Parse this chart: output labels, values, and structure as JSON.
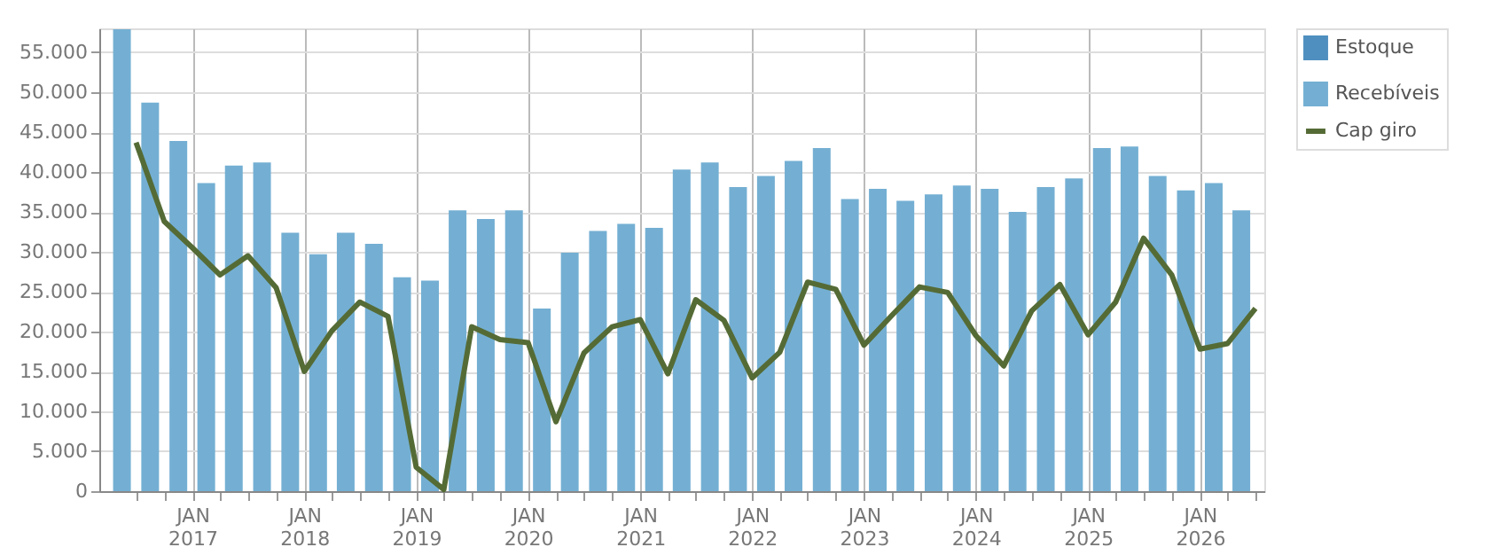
{
  "chart_data": {
    "type": "bar",
    "legend": "right",
    "grid": true,
    "line_style": "solid",
    "marker": "none",
    "x": [
      "2016-07",
      "2016-10",
      "2017-01",
      "2017-04",
      "2017-07",
      "2017-10",
      "2018-01",
      "2018-04",
      "2018-07",
      "2018-10",
      "2019-01",
      "2019-04",
      "2019-07",
      "2019-10",
      "2020-01",
      "2020-04",
      "2020-07",
      "2020-10",
      "2021-01",
      "2021-04",
      "2021-07",
      "2021-10",
      "2022-01",
      "2022-04",
      "2022-07",
      "2022-10",
      "2023-01",
      "2023-04",
      "2023-07",
      "2023-10",
      "2024-01",
      "2024-04",
      "2024-07",
      "2024-10",
      "2025-01",
      "2025-04",
      "2025-07",
      "2025-10",
      "2026-01",
      "2026-04",
      "2026-07"
    ],
    "xlim": [
      "2016-04",
      "2026-07"
    ],
    "xticks": [
      {
        "value": "2016-07",
        "label": null
      },
      {
        "value": "2016-10",
        "label": null
      },
      {
        "value": "2017-01",
        "label": "JAN\n2017"
      },
      {
        "value": "2017-04",
        "label": null
      },
      {
        "value": "2017-07",
        "label": null
      },
      {
        "value": "2017-10",
        "label": null
      },
      {
        "value": "2018-01",
        "label": "JAN\n2018"
      },
      {
        "value": "2018-04",
        "label": null
      },
      {
        "value": "2018-07",
        "label": null
      },
      {
        "value": "2018-10",
        "label": null
      },
      {
        "value": "2019-01",
        "label": "JAN\n2019"
      },
      {
        "value": "2019-04",
        "label": null
      },
      {
        "value": "2019-07",
        "label": null
      },
      {
        "value": "2019-10",
        "label": null
      },
      {
        "value": "2020-01",
        "label": "JAN\n2020"
      },
      {
        "value": "2020-04",
        "label": null
      },
      {
        "value": "2020-07",
        "label": null
      },
      {
        "value": "2020-10",
        "label": null
      },
      {
        "value": "2021-01",
        "label": "JAN\n2021"
      },
      {
        "value": "2021-04",
        "label": null
      },
      {
        "value": "2021-07",
        "label": null
      },
      {
        "value": "2021-10",
        "label": null
      },
      {
        "value": "2022-01",
        "label": "JAN\n2022"
      },
      {
        "value": "2022-04",
        "label": null
      },
      {
        "value": "2022-07",
        "label": null
      },
      {
        "value": "2022-10",
        "label": null
      },
      {
        "value": "2023-01",
        "label": "JAN\n2023"
      },
      {
        "value": "2023-04",
        "label": null
      },
      {
        "value": "2023-07",
        "label": null
      },
      {
        "value": "2023-10",
        "label": null
      },
      {
        "value": "2024-01",
        "label": "JAN\n2024"
      },
      {
        "value": "2024-04",
        "label": null
      },
      {
        "value": "2024-07",
        "label": null
      },
      {
        "value": "2024-10",
        "label": null
      },
      {
        "value": "2025-01",
        "label": "JAN\n2025"
      },
      {
        "value": "2025-04",
        "label": null
      },
      {
        "value": "2025-07",
        "label": null
      },
      {
        "value": "2025-10",
        "label": null
      },
      {
        "value": "2026-01",
        "label": "JAN\n2026"
      },
      {
        "value": "2026-04",
        "label": null
      },
      {
        "value": "2026-07",
        "label": null
      }
    ],
    "ylim": [
      0,
      58000
    ],
    "yticks": [
      {
        "value": 0,
        "label": "0"
      },
      {
        "value": 5000,
        "label": "5.000"
      },
      {
        "value": 10000,
        "label": "10.000"
      },
      {
        "value": 15000,
        "label": "15.000"
      },
      {
        "value": 20000,
        "label": "20.000"
      },
      {
        "value": 25000,
        "label": "25.000"
      },
      {
        "value": 30000,
        "label": "30.000"
      },
      {
        "value": 35000,
        "label": "35.000"
      },
      {
        "value": 40000,
        "label": "40.000"
      },
      {
        "value": 45000,
        "label": "45.000"
      },
      {
        "value": 50000,
        "label": "50.000"
      },
      {
        "value": 55000,
        "label": "55.000"
      }
    ],
    "series": [
      {
        "name": "Estoque",
        "color": "#4f8fc0",
        "values": [
          null,
          null,
          null,
          null,
          null,
          null,
          null,
          null,
          null,
          null,
          null,
          null,
          null,
          null,
          null,
          null,
          null,
          null,
          null,
          null,
          null,
          null,
          null,
          null,
          null,
          null,
          null,
          null,
          null,
          null,
          null,
          null,
          null,
          null,
          null,
          null,
          null,
          null,
          null,
          null,
          null
        ]
      },
      {
        "name": "Recebíveis",
        "color": "#74afd3",
        "x": [
          "2016-05-16",
          "2016-08-16",
          "2016-11-16",
          "2017-02-15",
          "2017-05-16",
          "2017-08-16",
          "2017-11-16",
          "2018-02-15",
          "2018-05-16",
          "2018-08-16",
          "2018-11-16",
          "2019-02-15",
          "2019-05-16",
          "2019-08-16",
          "2019-11-16",
          "2020-02-15",
          "2020-05-16",
          "2020-08-16",
          "2020-11-16",
          "2021-02-15",
          "2021-05-16",
          "2021-08-16",
          "2021-11-16",
          "2022-02-15",
          "2022-05-16",
          "2022-08-16",
          "2022-11-16",
          "2023-02-15",
          "2023-05-16",
          "2023-08-16",
          "2023-11-16",
          "2024-02-15",
          "2024-05-16",
          "2024-08-16",
          "2024-11-16",
          "2025-02-15",
          "2025-05-16",
          "2025-08-16",
          "2025-11-16",
          "2026-02-15",
          "2026-05-16"
        ],
        "values": [
          57900,
          48700,
          43900,
          38600,
          40800,
          41200,
          32400,
          29700,
          32400,
          31000,
          26800,
          26400,
          35200,
          34100,
          35200,
          22900,
          29900,
          32600,
          33500,
          33000,
          40300,
          41200,
          38100,
          39500,
          41400,
          43000,
          36600,
          37900,
          36400,
          37200,
          38300,
          37900,
          35000,
          38100,
          39200,
          43000,
          43200,
          39500,
          37700,
          38600,
          35200
        ]
      },
      {
        "name": "Cap giro",
        "type": "line",
        "color": "#556b36",
        "values": [
          43700,
          33800,
          30500,
          27100,
          29500,
          25500,
          15000,
          20100,
          23700,
          21900,
          3000,
          200,
          20600,
          19000,
          18600,
          8700,
          17300,
          20600,
          21500,
          14700,
          24000,
          21400,
          14200,
          17400,
          26200,
          25300,
          18300,
          22000,
          25600,
          24900,
          19500,
          15700,
          22600,
          25900,
          19600,
          23700,
          31700,
          27100,
          17800,
          18500,
          22900
        ]
      }
    ]
  }
}
